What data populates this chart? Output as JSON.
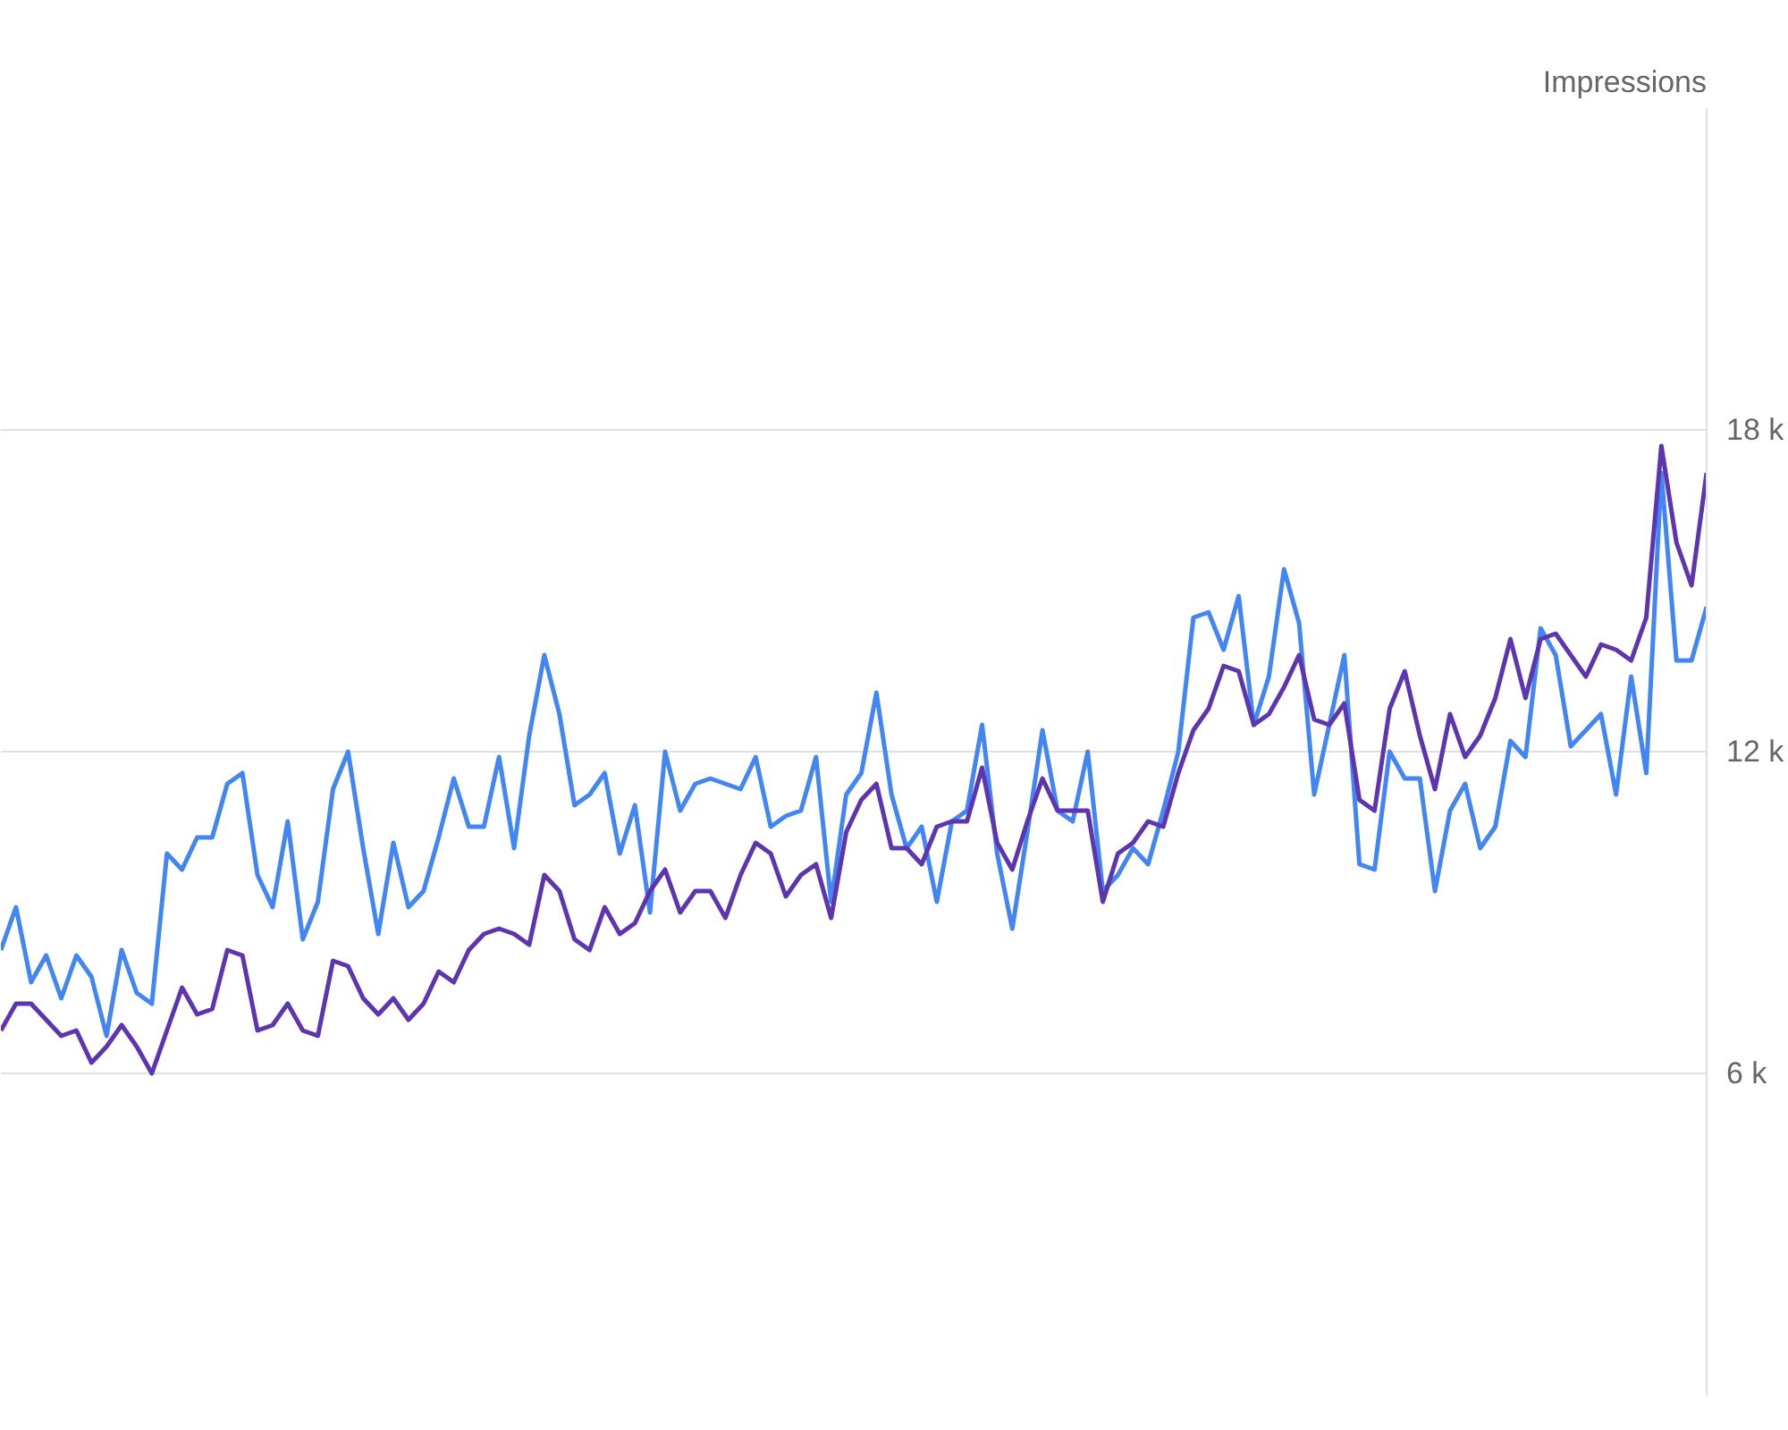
{
  "chart_data": {
    "type": "line",
    "ylabel": "Impressions",
    "categories": [
      null,
      null,
      null,
      null,
      null,
      null,
      null,
      null,
      null,
      null,
      null,
      null,
      null,
      null,
      null,
      null,
      null,
      null,
      null,
      null,
      null,
      null,
      null,
      null,
      null,
      null,
      null,
      null,
      null,
      null,
      null,
      null,
      null,
      null,
      null,
      null,
      null,
      null,
      null,
      null,
      null,
      null,
      null,
      null,
      null,
      null,
      null,
      null,
      null,
      null,
      null,
      null,
      null,
      null,
      null,
      null,
      null,
      null,
      null,
      null,
      null,
      null,
      null,
      null,
      null,
      null,
      null,
      null,
      null,
      null,
      null,
      null,
      null,
      null,
      null,
      null,
      null,
      null,
      null,
      null,
      null,
      null,
      null,
      null,
      null,
      null,
      null,
      null,
      null,
      null,
      null,
      null,
      null,
      null,
      null,
      null,
      null,
      null,
      null,
      null,
      null,
      null,
      null,
      null,
      null,
      null,
      null,
      null,
      null,
      null,
      null,
      null,
      null,
      null
    ],
    "series": [
      {
        "color": "#4285f4",
        "values": [
          8.3,
          9.1,
          7.7,
          8.2,
          7.4,
          8.2,
          7.8,
          6.7,
          8.3,
          7.5,
          7.3,
          10.1,
          9.8,
          10.4,
          10.4,
          11.4,
          11.6,
          9.7,
          9.1,
          10.7,
          8.5,
          9.2,
          11.3,
          12.0,
          10.2,
          8.6,
          10.3,
          9.1,
          9.4,
          10.4,
          11.5,
          10.6,
          10.6,
          11.9,
          10.2,
          12.3,
          13.8,
          12.7,
          11.0,
          11.2,
          11.6,
          10.1,
          11.0,
          9.0,
          12.0,
          10.9,
          11.4,
          11.5,
          11.4,
          11.3,
          11.9,
          10.6,
          10.8,
          10.9,
          11.9,
          9.2,
          11.2,
          11.6,
          13.1,
          11.2,
          10.2,
          10.6,
          9.2,
          10.7,
          10.9,
          12.5,
          10.1,
          8.7,
          10.5,
          12.4,
          10.9,
          10.7,
          12.0,
          9.4,
          9.7,
          10.2,
          9.9,
          10.9,
          12.0,
          14.5,
          14.6,
          13.9,
          14.9,
          12.5,
          13.4,
          15.4,
          14.4,
          11.2,
          12.5,
          13.8,
          9.9,
          9.8,
          12.0,
          11.5,
          11.5,
          9.4,
          10.9,
          11.4,
          10.2,
          10.6,
          12.2,
          11.9,
          14.3,
          13.8,
          12.1,
          12.4,
          12.7,
          11.2,
          13.4,
          11.6,
          17.2,
          13.7,
          13.7,
          14.7
        ]
      },
      {
        "color": "#5e35b1",
        "values": [
          6.8,
          7.3,
          7.3,
          7.0,
          6.7,
          6.8,
          6.2,
          6.5,
          6.9,
          6.5,
          6.0,
          6.8,
          7.6,
          7.1,
          7.2,
          8.3,
          8.2,
          6.8,
          6.9,
          7.3,
          6.8,
          6.7,
          8.1,
          8.0,
          7.4,
          7.1,
          7.4,
          7.0,
          7.3,
          7.9,
          7.7,
          8.3,
          8.6,
          8.7,
          8.6,
          8.4,
          9.7,
          9.4,
          8.5,
          8.3,
          9.1,
          8.6,
          8.8,
          9.4,
          9.8,
          9.0,
          9.4,
          9.4,
          8.9,
          9.7,
          10.3,
          10.1,
          9.3,
          9.7,
          9.9,
          8.9,
          10.5,
          11.1,
          11.4,
          10.2,
          10.2,
          9.9,
          10.6,
          10.7,
          10.7,
          11.7,
          10.3,
          9.8,
          10.7,
          11.5,
          10.9,
          10.9,
          10.9,
          9.2,
          10.1,
          10.3,
          10.7,
          10.6,
          11.6,
          12.4,
          12.8,
          13.6,
          13.5,
          12.5,
          12.7,
          13.2,
          13.8,
          12.6,
          12.5,
          12.9,
          11.1,
          10.9,
          12.8,
          13.5,
          12.3,
          11.3,
          12.7,
          11.9,
          12.3,
          13.0,
          14.1,
          13.0,
          14.1,
          14.2,
          13.8,
          13.4,
          14.0,
          13.9,
          13.7,
          14.5,
          17.7,
          15.9,
          15.1,
          17.2
        ]
      }
    ],
    "ylim": [
      0,
      24
    ],
    "yticks": [
      {
        "value": 6,
        "label": "6 k"
      },
      {
        "value": 12,
        "label": "12 k"
      },
      {
        "value": 18,
        "label": "18 k"
      }
    ],
    "grid": "y",
    "tick_labels": "y",
    "line_style": "solid"
  }
}
